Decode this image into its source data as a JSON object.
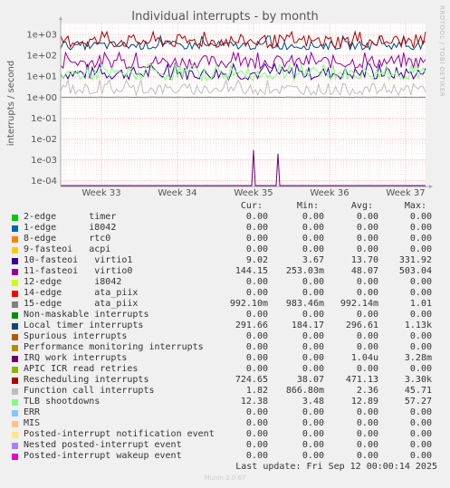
{
  "chart_data": {
    "type": "line",
    "title": "Individual interrupts - by month",
    "ylabel": "interrupts / second",
    "yscale": "log",
    "ylim": [
      5e-05,
      20000
    ],
    "y_ticks": [
      "1e+03",
      "1e+02",
      "1e+01",
      "1e+00",
      "1e-01",
      "1e-02",
      "1e-03",
      "1e-04"
    ],
    "x_ticks": [
      "Week 33",
      "Week 34",
      "Week 35",
      "Week 36",
      "Week 37"
    ],
    "grid": true,
    "side_label": "RRDTOOL / TOBI OETIKER",
    "columns": [
      "Cur:",
      "Min:",
      "Avg:",
      "Max:"
    ],
    "series": [
      {
        "name": "2-edge      timer",
        "color": "#00cc00",
        "cur": "0.00",
        "min": "0.00",
        "avg": "0.00",
        "max": "0.00"
      },
      {
        "name": "1-edge      i8042",
        "color": "#0066b3",
        "cur": "0.00",
        "min": "0.00",
        "avg": "0.00",
        "max": "0.00"
      },
      {
        "name": "8-edge      rtc0",
        "color": "#ff8000",
        "cur": "0.00",
        "min": "0.00",
        "avg": "0.00",
        "max": "0.00"
      },
      {
        "name": "9-fasteoi   acpi",
        "color": "#ffcc00",
        "cur": "0.00",
        "min": "0.00",
        "avg": "0.00",
        "max": "0.00"
      },
      {
        "name": "10-fasteoi   virtio1",
        "color": "#330099",
        "cur": "9.02",
        "min": "3.67",
        "avg": "13.70",
        "max": "331.92"
      },
      {
        "name": "11-fasteoi   virtio0",
        "color": "#990099",
        "cur": "144.15",
        "min": "253.03m",
        "avg": "48.07",
        "max": "503.04"
      },
      {
        "name": "12-edge      i8042",
        "color": "#ccff00",
        "cur": "0.00",
        "min": "0.00",
        "avg": "0.00",
        "max": "0.00"
      },
      {
        "name": "14-edge      ata_piix",
        "color": "#ff0000",
        "cur": "0.00",
        "min": "0.00",
        "avg": "0.00",
        "max": "0.00"
      },
      {
        "name": "15-edge      ata_piix",
        "color": "#808080",
        "cur": "992.10m",
        "min": "983.46m",
        "avg": "992.14m",
        "max": "1.01"
      },
      {
        "name": "Non-maskable interrupts",
        "color": "#008f00",
        "cur": "0.00",
        "min": "0.00",
        "avg": "0.00",
        "max": "0.00"
      },
      {
        "name": "Local timer interrupts",
        "color": "#00487d",
        "cur": "291.66",
        "min": "184.17",
        "avg": "296.61",
        "max": "1.13k"
      },
      {
        "name": "Spurious interrupts",
        "color": "#b35a00",
        "cur": "0.00",
        "min": "0.00",
        "avg": "0.00",
        "max": "0.00"
      },
      {
        "name": "Performance monitoring interrupts",
        "color": "#b38f00",
        "cur": "0.00",
        "min": "0.00",
        "avg": "0.00",
        "max": "0.00"
      },
      {
        "name": "IRQ work interrupts",
        "color": "#6b006b",
        "cur": "0.00",
        "min": "0.00",
        "avg": "1.04u",
        "max": "3.28m"
      },
      {
        "name": "APIC ICR read retries",
        "color": "#8fb300",
        "cur": "0.00",
        "min": "0.00",
        "avg": "0.00",
        "max": "0.00"
      },
      {
        "name": "Rescheduling interrupts",
        "color": "#b30000",
        "cur": "724.65",
        "min": "38.07",
        "avg": "471.13",
        "max": "3.30k"
      },
      {
        "name": "Function call interrupts",
        "color": "#bebebe",
        "cur": "1.82",
        "min": "866.80m",
        "avg": "2.36",
        "max": "45.71"
      },
      {
        "name": "TLB shootdowns",
        "color": "#80ff80",
        "cur": "12.38",
        "min": "3.48",
        "avg": "12.89",
        "max": "57.27"
      },
      {
        "name": "ERR",
        "color": "#80c9ff",
        "cur": "0.00",
        "min": "0.00",
        "avg": "0.00",
        "max": "0.00"
      },
      {
        "name": "MIS",
        "color": "#ffc080",
        "cur": "0.00",
        "min": "0.00",
        "avg": "0.00",
        "max": "0.00"
      },
      {
        "name": "Posted-interrupt notification event",
        "color": "#ffe680",
        "cur": "0.00",
        "min": "0.00",
        "avg": "0.00",
        "max": "0.00"
      },
      {
        "name": "Nested posted-interrupt event",
        "color": "#aa80ff",
        "cur": "0.00",
        "min": "0.00",
        "avg": "0.00",
        "max": "0.00"
      },
      {
        "name": "Posted-interrupt wakeup event",
        "color": "#ee00cc",
        "cur": "0.00",
        "min": "0.00",
        "avg": "0.00",
        "max": "0.00"
      }
    ]
  },
  "footer": "Last update: Fri Sep 12 00:00:14 2025",
  "munin_version": "Munin 2.0.67"
}
